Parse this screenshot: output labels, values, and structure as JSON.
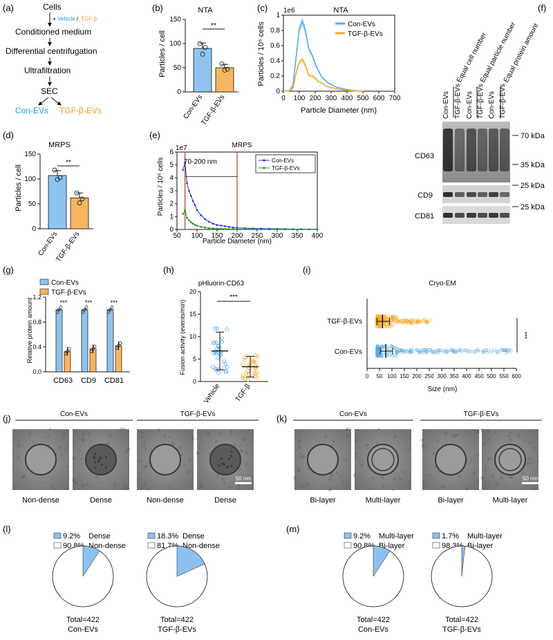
{
  "colors": {
    "con": "#5aa9e6",
    "con_dark": "#2f6fb0",
    "tgf": "#f5a623",
    "tgf_fill": "#f7b661",
    "con_fill": "#8fc3f0",
    "blue_line": "#1c2fd0",
    "green_line": "#169416",
    "red_line": "#c0392b",
    "pie_slice": "#8ec1ef",
    "vehicle_text": "#1c9be0",
    "tgf_text": "#f09a1e"
  },
  "panel_labels": {
    "a": "(a)",
    "b": "(b)",
    "c": "(c)",
    "d": "(d)",
    "e": "(e)",
    "f": "(f)",
    "g": "(g)",
    "h": "(h)",
    "i": "(i)",
    "j": "(j)",
    "k": "(k)",
    "l": "(l)",
    "m": "(m)"
  },
  "panel_a": {
    "steps": [
      "Cells",
      "Conditioned medium",
      "Differential centrifugation",
      "Ultrafiltration",
      "SEC"
    ],
    "plus": "+",
    "vehicle": "Vehicle",
    "slash": "/",
    "tgf": "TGF-β",
    "out_con": "Con-EVs",
    "out_tgf": "TGF-β-EVs"
  },
  "panel_b": {
    "title": "NTA",
    "ylabel": "Particles / cell",
    "sig": "**",
    "yticks": [
      "0",
      "50",
      "100",
      "150"
    ],
    "chart_data": {
      "type": "bar",
      "categories": [
        "Con-EVs",
        "TGF-β-EVs"
      ],
      "values": [
        90,
        50
      ],
      "ylim": [
        0,
        150
      ],
      "points": [
        [
          100,
          78,
          92
        ],
        [
          58,
          45,
          47
        ]
      ]
    }
  },
  "panel_c": {
    "title": "NTA",
    "ylabel": "Particles / 10⁶ cells",
    "xlabel": "Particle Diameter (nm)",
    "exponent": "1e6",
    "yticks": [
      "0",
      "0.2",
      "0.4",
      "0.6",
      "0.8",
      "1"
    ],
    "xticks": [
      "0",
      "100",
      "200",
      "300",
      "400",
      "500",
      "600",
      "700"
    ],
    "legend": [
      "Con-EVs",
      "TGF-β-EVs"
    ],
    "chart_data": {
      "type": "line",
      "xlim": [
        0,
        700
      ],
      "ylim": [
        0,
        1.0
      ],
      "x": [
        0,
        40,
        60,
        80,
        100,
        120,
        140,
        160,
        180,
        200,
        220,
        240,
        260,
        280,
        300,
        320,
        340,
        360,
        380,
        400,
        420,
        440,
        460,
        480,
        500
      ],
      "series": [
        {
          "name": "Con-EVs",
          "values": [
            0,
            0.01,
            0.08,
            0.45,
            0.82,
            0.92,
            0.78,
            0.55,
            0.48,
            0.36,
            0.27,
            0.19,
            0.15,
            0.11,
            0.09,
            0.07,
            0.05,
            0.04,
            0.03,
            0.02,
            0.015,
            0.01,
            0.005,
            0.003,
            0
          ]
        },
        {
          "name": "TGF-β-EVs",
          "values": [
            0,
            0.005,
            0.04,
            0.24,
            0.38,
            0.42,
            0.33,
            0.21,
            0.2,
            0.17,
            0.13,
            0.11,
            0.08,
            0.06,
            0.05,
            0.04,
            0.03,
            0.02,
            0.015,
            0.01,
            0.006,
            0.004,
            0.002,
            0.001,
            0
          ]
        }
      ]
    }
  },
  "panel_d": {
    "title": "MRPS",
    "ylabel": "Particles / cell",
    "sig": "**",
    "yticks": [
      "0",
      "50",
      "100",
      "150"
    ],
    "chart_data": {
      "type": "bar",
      "categories": [
        "Con-EVs",
        "TGF-β-EVs"
      ],
      "values": [
        107,
        62
      ],
      "ylim": [
        0,
        150
      ],
      "points": [
        [
          118,
          99,
          103
        ],
        [
          72,
          52,
          60
        ]
      ]
    }
  },
  "panel_e": {
    "title": "MRPS",
    "exponent": "1e7",
    "ylabel": "Particles / 10⁶ cells",
    "xlabel": "Particle Diameter (nm)",
    "range_label": "70-200 nm",
    "yticks": [
      "0",
      "1",
      "2",
      "3",
      "4",
      "5",
      "6"
    ],
    "xticks": [
      "50",
      "100",
      "150",
      "200",
      "250",
      "300",
      "350",
      "400"
    ],
    "legend": [
      "Con-EVs",
      "TGF-β-EVs"
    ],
    "chart_data": {
      "type": "line",
      "xlim": [
        50,
        400
      ],
      "ylim": [
        0,
        6
      ],
      "x": [
        65,
        70,
        75,
        80,
        85,
        90,
        95,
        100,
        110,
        120,
        130,
        140,
        150,
        160,
        170,
        180,
        190,
        200,
        220,
        240,
        260,
        280,
        300,
        320,
        340,
        360,
        380,
        400
      ],
      "series": [
        {
          "name": "Con-EVs",
          "values": [
            4.6,
            5.2,
            3.6,
            3.0,
            2.6,
            2.2,
            1.9,
            1.5,
            1.1,
            0.8,
            0.6,
            0.45,
            0.35,
            0.3,
            0.25,
            0.2,
            0.15,
            0.12,
            0.1,
            0.08,
            0.07,
            0.06,
            0.05,
            0.04,
            0.03,
            0.03,
            0.02,
            0.02
          ]
        },
        {
          "name": "TGF-β-EVs",
          "values": [
            1.2,
            1.5,
            0.9,
            0.7,
            0.55,
            0.45,
            0.35,
            0.3,
            0.2,
            0.15,
            0.1,
            0.08,
            0.06,
            0.05,
            0.04,
            0.03,
            0.03,
            0.02,
            0.02,
            0.02,
            0.01,
            0.01,
            0.01,
            0.01,
            0.01,
            0.01,
            0.01,
            0.01
          ]
        }
      ]
    }
  },
  "panel_f": {
    "lanes": [
      "Con-EVs",
      "TGF-β-EVs",
      "Con-EVs",
      "TGF-β-EVs",
      "Con-EVs",
      "TGF-β-EVs"
    ],
    "groups": [
      "Equal cell number",
      "Equal particle number",
      "Equal protein amount"
    ],
    "rows": [
      "CD63",
      "CD9",
      "CD81"
    ],
    "markers": [
      "70 kDa",
      "35 kDa",
      "25 kDa",
      "25 kDa"
    ]
  },
  "panel_g": {
    "ylabel": "Relative protein amount",
    "legend": [
      "Con-EVs",
      "TGF-β-EVs"
    ],
    "sig": [
      "***",
      "***",
      "***"
    ],
    "yticks": [
      "0.0",
      "0.4",
      "0.8",
      "1.2"
    ],
    "chart_data": {
      "type": "bar",
      "categories": [
        "CD63",
        "CD9",
        "CD81"
      ],
      "ylim": [
        0,
        1.2
      ],
      "series": [
        {
          "name": "Con-EVs",
          "values": [
            1.0,
            1.0,
            1.0
          ]
        },
        {
          "name": "TGF-β-EVs",
          "values": [
            0.33,
            0.37,
            0.42
          ]
        }
      ]
    }
  },
  "panel_h": {
    "title": "pHluorin-CD63",
    "ylabel": "Fusion activity (events/min)",
    "sig": "***",
    "yticks": [
      "0",
      "5",
      "10",
      "15",
      "20"
    ],
    "chart_data": {
      "type": "scatter",
      "categories": [
        "Vehicle",
        "TGF-β"
      ],
      "ylim": [
        0,
        20
      ],
      "means": [
        6.8,
        3.3
      ],
      "sd": [
        4.2,
        2.3
      ]
    }
  },
  "panel_i": {
    "title": "Cryo-EM",
    "xlabel": "Size (nm)",
    "sig": "***",
    "categories": [
      "TGF-β-EVs",
      "Con-EVs"
    ],
    "xticks": [
      "0",
      "50",
      "100",
      "150",
      "200",
      "250",
      "300",
      "350",
      "400",
      "450",
      "500",
      "550",
      "600"
    ],
    "chart_data": {
      "type": "scatter",
      "xlim": [
        0,
        600
      ],
      "medians": [
        62,
        75
      ]
    }
  },
  "panel_j": {
    "group_labels": [
      "Con-EVs",
      "TGF-β-EVs"
    ],
    "captions": [
      "Non-dense",
      "Dense",
      "Non-dense",
      "Dense"
    ],
    "scale": "50 nm"
  },
  "panel_k": {
    "group_labels": [
      "Con-EVs",
      "TGF-β-EVs"
    ],
    "captions": [
      "Bi-layer",
      "Multi-layer",
      "Bi-layer",
      "Multi-layer"
    ],
    "scale": "50 nm"
  },
  "panel_l": {
    "pies": [
      {
        "pct1": "9.2%",
        "cat1": "Dense",
        "pct2": "90.8%",
        "cat2": "Non-dense",
        "total": "Total=422",
        "name": "Con-EVs",
        "fraction": 0.092
      },
      {
        "pct1": "18.3%",
        "cat1": "Dense",
        "pct2": "81.7%",
        "cat2": "Non-dense",
        "total": "Total=422",
        "name": "TGF-β-EVs",
        "fraction": 0.183
      }
    ]
  },
  "panel_m": {
    "pies": [
      {
        "pct1": "9.2%",
        "cat1": "Multi-layer",
        "pct2": "90.8%",
        "cat2": "Bi-layer",
        "total": "Total=422",
        "name": "Con-EVs",
        "fraction": 0.092
      },
      {
        "pct1": "1.7%",
        "cat1": "Multi-layer",
        "pct2": "98.3%",
        "cat2": "Bi-layer",
        "total": "Total=422",
        "name": "TGF-β-EVs",
        "fraction": 0.017
      }
    ]
  }
}
